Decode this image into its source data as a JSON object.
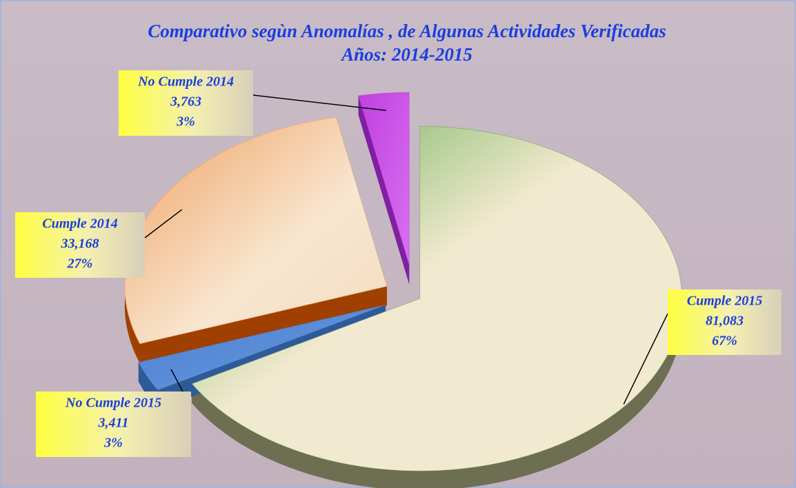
{
  "chart_data": {
    "type": "pie",
    "title": [
      "Comparativo segùn Anomalías , de Algunas Actividades  Verificadas",
      "Años: 2014-2015"
    ],
    "categories": [
      "Cumple 2015",
      "No Cumple 2015",
      "Cumple 2014",
      "No Cumple 2014"
    ],
    "values": [
      81083,
      3411,
      33168,
      3763
    ],
    "value_labels": [
      "81,083",
      "3,411",
      "33,168",
      "3,763"
    ],
    "percent_labels": [
      "67%",
      "3%",
      "27%",
      "3%"
    ],
    "colors": [
      "#5aa545",
      "#4a7fd0",
      "#f0a060",
      "#c040e0"
    ]
  }
}
